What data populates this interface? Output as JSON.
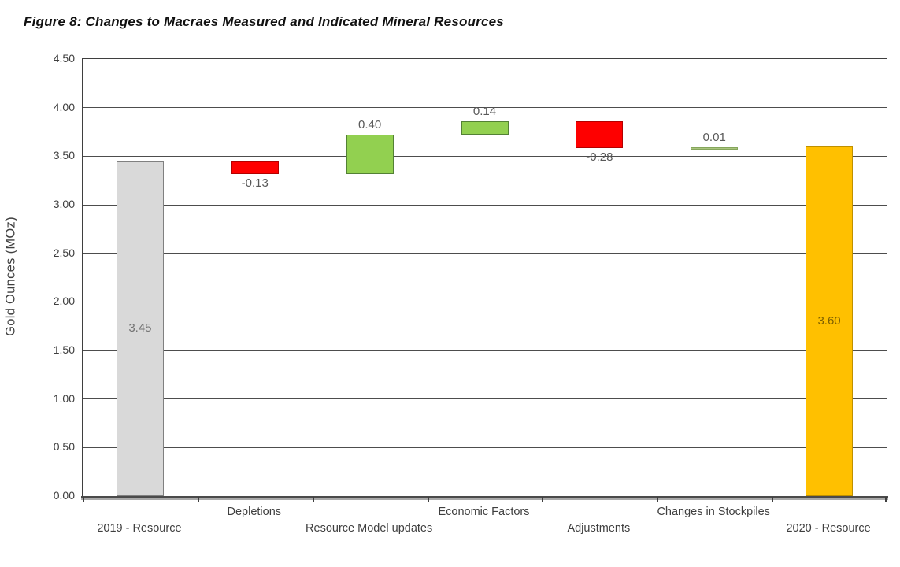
{
  "page": {
    "title": "Figure 8: Changes to Macraes Measured and Indicated Mineral Resources"
  },
  "chart_data": {
    "type": "bar",
    "subtype": "waterfall",
    "title": "Figure 8: Changes to Macraes Measured and Indicated Mineral Resources",
    "xlabel": "",
    "ylabel": "Gold Ounces (MOz)",
    "ylim": [
      0,
      4.5
    ],
    "ytick_step": 0.5,
    "yticks": [
      "0.00",
      "0.50",
      "1.00",
      "1.50",
      "2.00",
      "2.50",
      "3.00",
      "3.50",
      "4.00",
      "4.50"
    ],
    "grid": true,
    "legend": null,
    "categories": [
      "2019 - Resource",
      "Depletions",
      "Resource Model updates",
      "Economic Factors",
      "Adjustments",
      "Changes in Stockpiles",
      "2020 - Resource"
    ],
    "bars": [
      {
        "category": "2019 - Resource",
        "value": 3.45,
        "label": "3.45",
        "start": 0,
        "end": 3.45,
        "kind": "total",
        "fill": "#D9D9D9",
        "border": "#808080",
        "label_pos": "inside",
        "label_color": "#737373"
      },
      {
        "category": "Depletions",
        "value": -0.13,
        "label": "-0.13",
        "start": 3.45,
        "end": 3.32,
        "kind": "decrease",
        "fill": "#FE0000",
        "border": "#B30000",
        "label_pos": "below",
        "label_color": "#595959"
      },
      {
        "category": "Resource Model updates",
        "value": 0.4,
        "label": "0.40",
        "start": 3.32,
        "end": 3.72,
        "kind": "increase",
        "fill": "#92D050",
        "border": "#538135",
        "label_pos": "above",
        "label_color": "#595959"
      },
      {
        "category": "Economic Factors",
        "value": 0.14,
        "label": "0.14",
        "start": 3.72,
        "end": 3.86,
        "kind": "increase",
        "fill": "#92D050",
        "border": "#538135",
        "label_pos": "above",
        "label_color": "#595959"
      },
      {
        "category": "Adjustments",
        "value": -0.28,
        "label": "-0.28",
        "start": 3.86,
        "end": 3.58,
        "kind": "decrease",
        "fill": "#FE0000",
        "border": "#B30000",
        "label_pos": "below",
        "label_color": "#595959"
      },
      {
        "category": "Changes in Stockpiles",
        "value": 0.01,
        "label": "0.01",
        "start": 3.58,
        "end": 3.59,
        "kind": "increase",
        "fill": "#A9C47F",
        "border": "#85A65B",
        "label_pos": "above",
        "label_color": "#595959"
      },
      {
        "category": "2020 - Resource",
        "value": 3.6,
        "label": "3.60",
        "start": 0,
        "end": 3.6,
        "kind": "total",
        "fill": "#FFC000",
        "border": "#BF9000",
        "label_pos": "inside",
        "label_color": "#7E6000"
      }
    ],
    "style": {
      "gridline_color": "#4d4d4d",
      "axis_color": "#3f3f3f",
      "data_label_color": "#595959",
      "tick_label_color": "#3f3f3f"
    }
  }
}
